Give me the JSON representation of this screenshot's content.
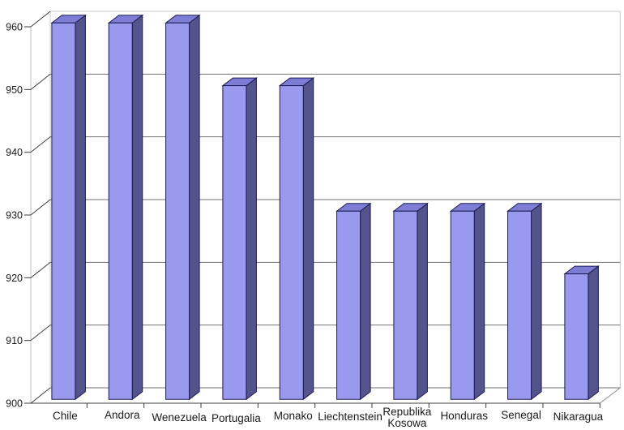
{
  "chart_data": {
    "type": "bar",
    "style": "3d-column",
    "title": "",
    "xlabel": "",
    "ylabel": "",
    "categories": [
      "Chile",
      "Andora",
      "Wenezuela",
      "Portugalia",
      "Monako",
      "Liechtenstein",
      "Republika Kosowa",
      "Honduras",
      "Senegal",
      "Nikaragua"
    ],
    "values": [
      960,
      960,
      960,
      950,
      950,
      930,
      930,
      930,
      930,
      920
    ],
    "ylim": [
      900,
      960
    ],
    "y_ticks": [
      900,
      910,
      920,
      930,
      940,
      950,
      960
    ],
    "grid": true,
    "legend": false,
    "colors": {
      "background": "#ffffff",
      "bar_front": "#9999ee",
      "bar_top": "#7d7dd6",
      "bar_side": "#54548c",
      "bar_outline": "#1c1c50",
      "gridline": "#737373",
      "wall_edge": "#c8c8c8",
      "axis_line": "#bfbfbf",
      "tick": "#3c3c3c",
      "floor_diagonal": "#8c8c8c",
      "text": "#1a1a1a"
    }
  }
}
